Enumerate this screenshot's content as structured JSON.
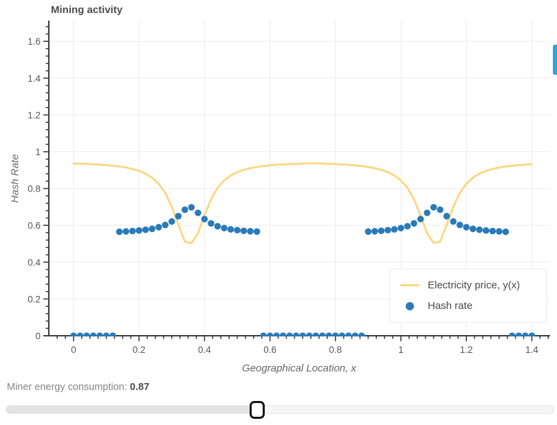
{
  "chart": {
    "title": "Mining activity",
    "x_axis": {
      "title": "Geographical Location, x",
      "tick_values": [
        0,
        0.2,
        0.4,
        0.6,
        0.8,
        1,
        1.2,
        1.4
      ],
      "tick_labels": [
        "0",
        "0.2",
        "0.4",
        "0.6",
        "0.8",
        "1",
        "1.2",
        "1.4"
      ],
      "minor": {
        "start": -0.05,
        "end": 1.45,
        "step": 0.025
      }
    },
    "y_axis": {
      "title": "Hash Rate",
      "tick_values": [
        0,
        0.2,
        0.4,
        0.6,
        0.8,
        1,
        1.2,
        1.4,
        1.6
      ],
      "tick_labels": [
        "0",
        "0.2",
        "0.4",
        "0.6",
        "0.8",
        "1",
        "1.2",
        "1.4",
        "1.6"
      ],
      "minor": {
        "start": 0,
        "end": 1.68,
        "step": 0.04
      }
    },
    "legend": [
      {
        "label": "Electricity price, y(x)",
        "marker": "line",
        "color": "#fbd77c"
      },
      {
        "label": "Hash rate",
        "marker": "dot",
        "color": "#2a7ab9"
      }
    ],
    "colors": {
      "grid": "#ebebeb",
      "spine": "#3b3b3b",
      "tick_label": "#555555",
      "line": "#fbd77c",
      "dot": "#2a7ab9"
    }
  },
  "chart_data": {
    "type": "line+scatter",
    "title": "Mining activity",
    "xlabel": "Geographical Location, x",
    "ylabel": "Hash Rate",
    "xlim": [
      -0.076,
      1.456
    ],
    "ylim": [
      0,
      1.71
    ],
    "grid": true,
    "legend_position": "lower right",
    "x": [
      0.0,
      0.02,
      0.04,
      0.06,
      0.08,
      0.1,
      0.12,
      0.14,
      0.16,
      0.18,
      0.2,
      0.22,
      0.24,
      0.26,
      0.28,
      0.3,
      0.32,
      0.34,
      0.36,
      0.38,
      0.4,
      0.42,
      0.44,
      0.46,
      0.48,
      0.5,
      0.52,
      0.54,
      0.56,
      0.58,
      0.6,
      0.62,
      0.64,
      0.66,
      0.68,
      0.7,
      0.72,
      0.74,
      0.76,
      0.78,
      0.8,
      0.82,
      0.84,
      0.86,
      0.88,
      0.9,
      0.92,
      0.94,
      0.96,
      0.98,
      1.0,
      1.02,
      1.04,
      1.06,
      1.08,
      1.1,
      1.12,
      1.14,
      1.16,
      1.18,
      1.2,
      1.22,
      1.24,
      1.26,
      1.28,
      1.3,
      1.32,
      1.34,
      1.36,
      1.38,
      1.4
    ],
    "series": [
      {
        "name": "Electricity price, y(x)",
        "type": "line",
        "color": "#fbd77c",
        "values": [
          0.936,
          0.935,
          0.934,
          0.932,
          0.93,
          0.927,
          0.924,
          0.92,
          0.914,
          0.906,
          0.896,
          0.881,
          0.859,
          0.826,
          0.776,
          0.701,
          0.604,
          0.512,
          0.504,
          0.557,
          0.654,
          0.742,
          0.804,
          0.844,
          0.871,
          0.889,
          0.902,
          0.911,
          0.917,
          0.922,
          0.926,
          0.929,
          0.931,
          0.933,
          0.934,
          0.936,
          0.937,
          0.937,
          0.936,
          0.934,
          0.933,
          0.931,
          0.929,
          0.926,
          0.922,
          0.917,
          0.911,
          0.902,
          0.889,
          0.871,
          0.844,
          0.804,
          0.742,
          0.654,
          0.557,
          0.504,
          0.512,
          0.604,
          0.701,
          0.776,
          0.826,
          0.859,
          0.881,
          0.896,
          0.906,
          0.914,
          0.92,
          0.924,
          0.927,
          0.93,
          0.932
        ]
      },
      {
        "name": "Hash rate",
        "type": "scatter",
        "color": "#2a7ab9",
        "values": [
          0,
          0,
          0,
          0,
          0,
          0,
          0,
          0.565,
          0.567,
          0.569,
          0.572,
          0.576,
          0.581,
          0.59,
          0.602,
          0.621,
          0.65,
          0.685,
          0.698,
          0.668,
          0.634,
          0.611,
          0.595,
          0.585,
          0.578,
          0.574,
          0.57,
          0.568,
          0.566,
          0,
          0,
          0,
          0,
          0,
          0,
          0,
          0,
          0,
          0,
          0,
          0,
          0,
          0,
          0,
          0,
          0.566,
          0.568,
          0.57,
          0.574,
          0.578,
          0.585,
          0.595,
          0.611,
          0.634,
          0.668,
          0.698,
          0.685,
          0.65,
          0.621,
          0.602,
          0.59,
          0.581,
          0.576,
          0.572,
          0.569,
          0.567,
          0.565,
          0,
          0,
          0,
          0
        ]
      }
    ]
  },
  "controls": {
    "label": "Miner energy consumption: ",
    "value": "0.87",
    "fraction": 0.459
  }
}
